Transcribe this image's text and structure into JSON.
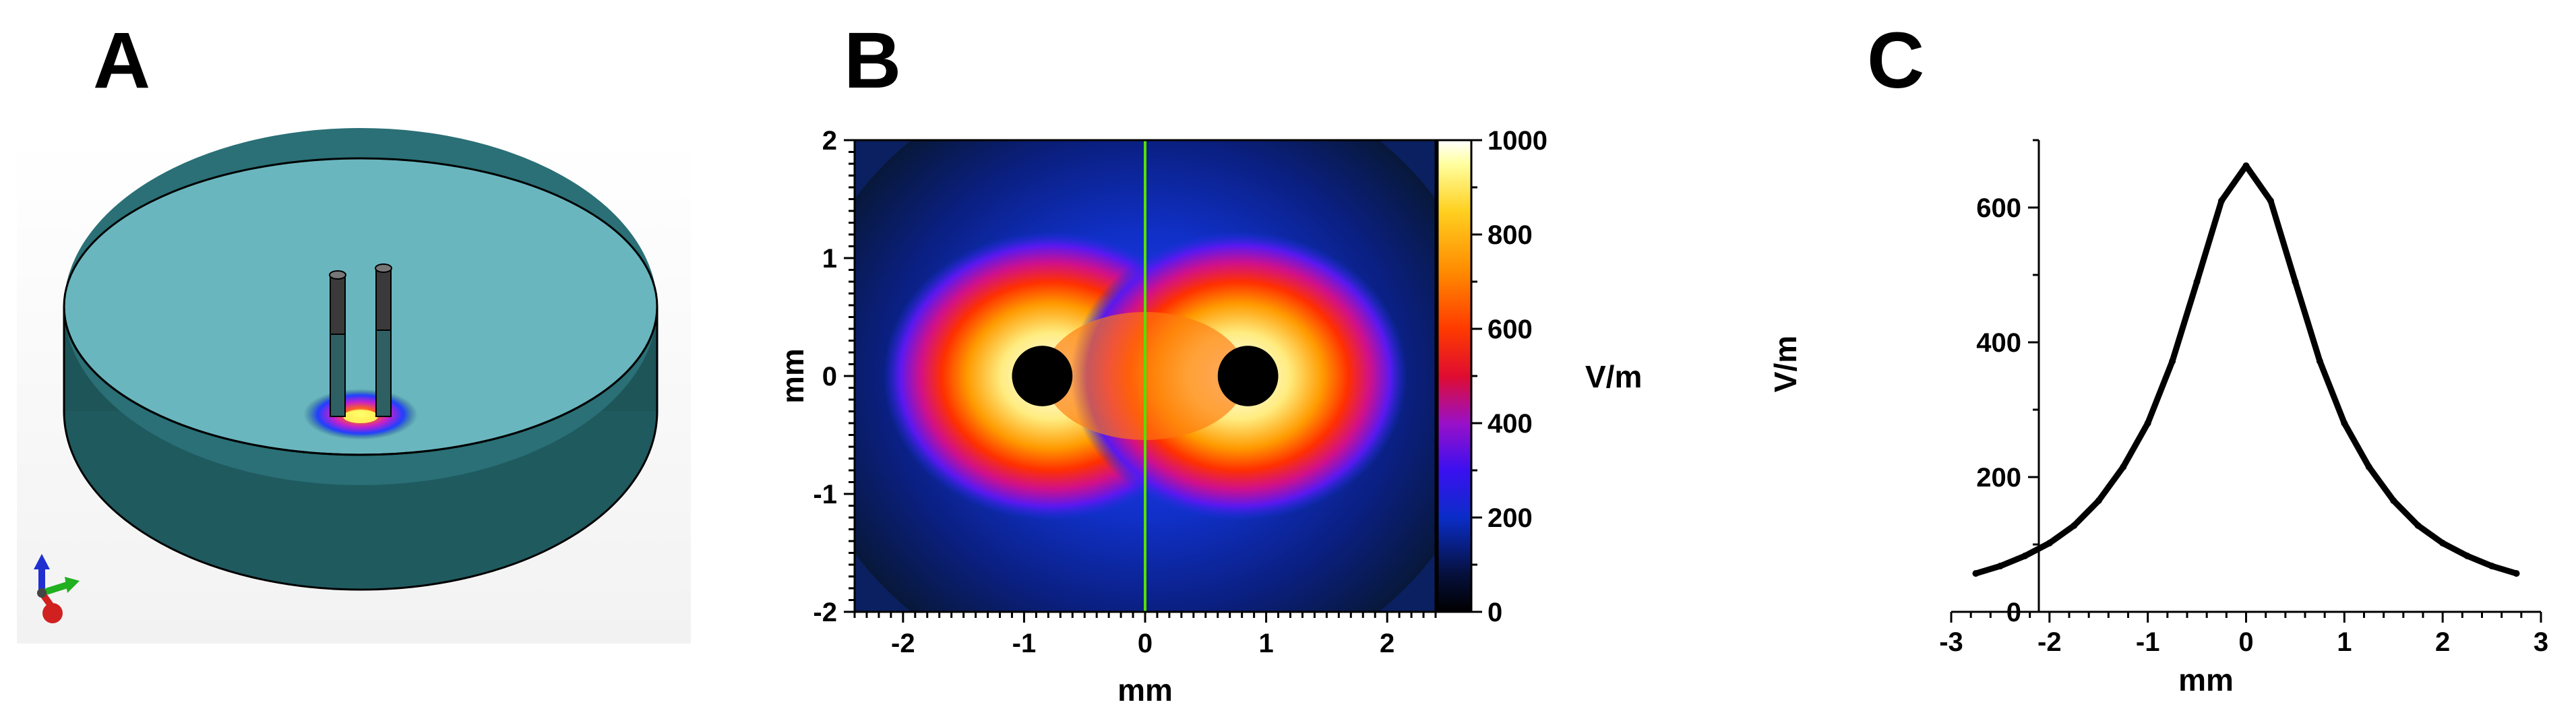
{
  "panels": {
    "a": {
      "letter": "A"
    },
    "b": {
      "letter": "B"
    },
    "c": {
      "letter": "C"
    }
  },
  "colors": {
    "dish_top": "#9ff0fb",
    "dish_bottom": "#24646a",
    "dish_wall": "#1d5558",
    "centerline": "#55e000",
    "curve": "#000000"
  },
  "chart_data": [
    {
      "type": "heatmap",
      "panel": "B",
      "title": "",
      "xlabel": "mm",
      "ylabel": "mm",
      "xlim": [
        -2.4,
        2.4
      ],
      "ylim": [
        -2,
        2
      ],
      "x_ticks": [
        -2,
        -1,
        0,
        1,
        2
      ],
      "y_ticks": [
        -2,
        -1,
        0,
        1,
        2
      ],
      "electrodes_x": [
        -0.85,
        0.85
      ],
      "electrode_radius": 0.25,
      "centerline_x": 0,
      "colorbar": {
        "label": "V/m",
        "range": [
          0,
          1000
        ],
        "ticks": [
          0,
          200,
          400,
          600,
          800,
          1000
        ],
        "colormap": "black-blue-purple-red-orange-yellow-white"
      }
    },
    {
      "type": "line",
      "panel": "C",
      "title": "",
      "xlabel": "mm",
      "ylabel": "V/m",
      "xlim": [
        -3,
        3
      ],
      "ylim": [
        0,
        700
      ],
      "x_ticks": [
        -3,
        -2,
        -1,
        0,
        1,
        2,
        3
      ],
      "y_ticks": [
        0,
        200,
        400,
        600
      ],
      "series": [
        {
          "x": [
            -2.75,
            -2.5,
            -2.25,
            -2.0,
            -1.75,
            -1.5,
            -1.25,
            -1.0,
            -0.75,
            -0.5,
            -0.25,
            0.0,
            0.25,
            0.5,
            0.75,
            1.0,
            1.25,
            1.5,
            1.75,
            2.0,
            2.25,
            2.5,
            2.75
          ],
          "y": [
            57,
            68,
            83,
            102,
            128,
            165,
            215,
            280,
            372,
            490,
            610,
            662,
            610,
            490,
            372,
            280,
            215,
            165,
            128,
            102,
            83,
            68,
            57
          ]
        }
      ]
    }
  ]
}
